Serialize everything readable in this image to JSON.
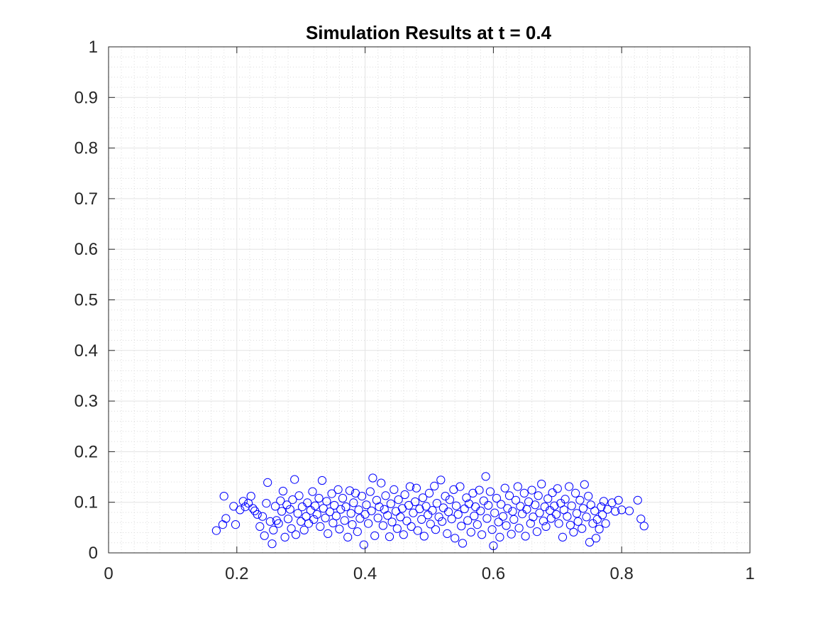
{
  "chart_data": {
    "type": "scatter",
    "title": "Simulation Results at t = 0.4",
    "xlabel": "",
    "ylabel": "",
    "xlim": [
      0,
      1
    ],
    "ylim": [
      0,
      1
    ],
    "x_ticks": [
      "0",
      "0.2",
      "0.4",
      "0.6",
      "0.8",
      "1"
    ],
    "y_ticks": [
      "0",
      "0.1",
      "0.2",
      "0.3",
      "0.4",
      "0.5",
      "0.6",
      "0.7",
      "0.8",
      "0.9",
      "1"
    ],
    "grid": true,
    "minor_grid": true,
    "marker": "open-circle",
    "marker_color": "#0000ff",
    "series": [
      {
        "points": [
          [
            0.168,
            0.044
          ],
          [
            0.178,
            0.056
          ],
          [
            0.18,
            0.112
          ],
          [
            0.183,
            0.068
          ],
          [
            0.195,
            0.092
          ],
          [
            0.198,
            0.056
          ],
          [
            0.205,
            0.085
          ],
          [
            0.21,
            0.102
          ],
          [
            0.213,
            0.091
          ],
          [
            0.218,
            0.098
          ],
          [
            0.222,
            0.112
          ],
          [
            0.225,
            0.088
          ],
          [
            0.228,
            0.083
          ],
          [
            0.232,
            0.076
          ],
          [
            0.236,
            0.052
          ],
          [
            0.24,
            0.072
          ],
          [
            0.243,
            0.034
          ],
          [
            0.246,
            0.098
          ],
          [
            0.248,
            0.139
          ],
          [
            0.252,
            0.062
          ],
          [
            0.255,
            0.018
          ],
          [
            0.257,
            0.045
          ],
          [
            0.26,
            0.092
          ],
          [
            0.262,
            0.064
          ],
          [
            0.265,
            0.058
          ],
          [
            0.268,
            0.103
          ],
          [
            0.27,
            0.082
          ],
          [
            0.272,
            0.122
          ],
          [
            0.275,
            0.031
          ],
          [
            0.278,
            0.095
          ],
          [
            0.28,
            0.067
          ],
          [
            0.283,
            0.086
          ],
          [
            0.285,
            0.048
          ],
          [
            0.287,
            0.105
          ],
          [
            0.29,
            0.145
          ],
          [
            0.292,
            0.036
          ],
          [
            0.295,
            0.078
          ],
          [
            0.297,
            0.113
          ],
          [
            0.3,
            0.062
          ],
          [
            0.302,
            0.091
          ],
          [
            0.305,
            0.045
          ],
          [
            0.308,
            0.072
          ],
          [
            0.31,
            0.099
          ],
          [
            0.312,
            0.058
          ],
          [
            0.315,
            0.084
          ],
          [
            0.318,
            0.121
          ],
          [
            0.32,
            0.066
          ],
          [
            0.322,
            0.093
          ],
          [
            0.325,
            0.076
          ],
          [
            0.328,
            0.108
          ],
          [
            0.33,
            0.052
          ],
          [
            0.333,
            0.143
          ],
          [
            0.335,
            0.088
          ],
          [
            0.338,
            0.069
          ],
          [
            0.34,
            0.102
          ],
          [
            0.342,
            0.038
          ],
          [
            0.345,
            0.081
          ],
          [
            0.348,
            0.117
          ],
          [
            0.35,
            0.059
          ],
          [
            0.352,
            0.094
          ],
          [
            0.355,
            0.073
          ],
          [
            0.358,
            0.125
          ],
          [
            0.36,
            0.047
          ],
          [
            0.362,
            0.086
          ],
          [
            0.365,
            0.108
          ],
          [
            0.368,
            0.064
          ],
          [
            0.37,
            0.091
          ],
          [
            0.373,
            0.031
          ],
          [
            0.376,
            0.123
          ],
          [
            0.378,
            0.078
          ],
          [
            0.38,
            0.056
          ],
          [
            0.382,
            0.099
          ],
          [
            0.385,
            0.118
          ],
          [
            0.388,
            0.042
          ],
          [
            0.39,
            0.085
          ],
          [
            0.392,
            0.068
          ],
          [
            0.395,
            0.112
          ],
          [
            0.398,
            0.016
          ],
          [
            0.4,
            0.076
          ],
          [
            0.402,
            0.095
          ],
          [
            0.405,
            0.058
          ],
          [
            0.408,
            0.121
          ],
          [
            0.41,
            0.083
          ],
          [
            0.412,
            0.148
          ],
          [
            0.415,
            0.034
          ],
          [
            0.418,
            0.104
          ],
          [
            0.42,
            0.069
          ],
          [
            0.422,
            0.091
          ],
          [
            0.425,
            0.138
          ],
          [
            0.428,
            0.054
          ],
          [
            0.43,
            0.086
          ],
          [
            0.432,
            0.113
          ],
          [
            0.435,
            0.074
          ],
          [
            0.438,
            0.032
          ],
          [
            0.44,
            0.097
          ],
          [
            0.442,
            0.061
          ],
          [
            0.445,
            0.125
          ],
          [
            0.448,
            0.082
          ],
          [
            0.45,
            0.048
          ],
          [
            0.452,
            0.105
          ],
          [
            0.455,
            0.071
          ],
          [
            0.458,
            0.088
          ],
          [
            0.46,
            0.036
          ],
          [
            0.462,
            0.115
          ],
          [
            0.465,
            0.063
          ],
          [
            0.468,
            0.094
          ],
          [
            0.47,
            0.131
          ],
          [
            0.472,
            0.052
          ],
          [
            0.475,
            0.079
          ],
          [
            0.478,
            0.101
          ],
          [
            0.48,
            0.128
          ],
          [
            0.482,
            0.044
          ],
          [
            0.485,
            0.087
          ],
          [
            0.488,
            0.066
          ],
          [
            0.49,
            0.109
          ],
          [
            0.492,
            0.033
          ],
          [
            0.495,
            0.092
          ],
          [
            0.498,
            0.075
          ],
          [
            0.5,
            0.118
          ],
          [
            0.502,
            0.057
          ],
          [
            0.505,
            0.084
          ],
          [
            0.508,
            0.132
          ],
          [
            0.51,
            0.046
          ],
          [
            0.512,
            0.098
          ],
          [
            0.515,
            0.071
          ],
          [
            0.518,
            0.144
          ],
          [
            0.52,
            0.062
          ],
          [
            0.522,
            0.089
          ],
          [
            0.525,
            0.112
          ],
          [
            0.528,
            0.038
          ],
          [
            0.53,
            0.081
          ],
          [
            0.532,
            0.105
          ],
          [
            0.535,
            0.067
          ],
          [
            0.538,
            0.125
          ],
          [
            0.54,
            0.029
          ],
          [
            0.542,
            0.093
          ],
          [
            0.545,
            0.076
          ],
          [
            0.548,
            0.131
          ],
          [
            0.55,
            0.053
          ],
          [
            0.552,
            0.019
          ],
          [
            0.555,
            0.087
          ],
          [
            0.558,
            0.109
          ],
          [
            0.56,
            0.064
          ],
          [
            0.562,
            0.097
          ],
          [
            0.565,
            0.041
          ],
          [
            0.568,
            0.118
          ],
          [
            0.57,
            0.073
          ],
          [
            0.572,
            0.091
          ],
          [
            0.575,
            0.056
          ],
          [
            0.578,
            0.124
          ],
          [
            0.58,
            0.083
          ],
          [
            0.582,
            0.036
          ],
          [
            0.585,
            0.103
          ],
          [
            0.588,
            0.151
          ],
          [
            0.59,
            0.068
          ],
          [
            0.592,
            0.094
          ],
          [
            0.595,
            0.121
          ],
          [
            0.598,
            0.046
          ],
          [
            0.6,
            0.014
          ],
          [
            0.602,
            0.079
          ],
          [
            0.605,
            0.108
          ],
          [
            0.608,
            0.061
          ],
          [
            0.61,
            0.031
          ],
          [
            0.612,
            0.096
          ],
          [
            0.615,
            0.072
          ],
          [
            0.618,
            0.128
          ],
          [
            0.62,
            0.054
          ],
          [
            0.622,
            0.088
          ],
          [
            0.625,
            0.113
          ],
          [
            0.628,
            0.037
          ],
          [
            0.63,
            0.082
          ],
          [
            0.632,
            0.066
          ],
          [
            0.635,
            0.104
          ],
          [
            0.638,
            0.131
          ],
          [
            0.64,
            0.049
          ],
          [
            0.642,
            0.092
          ],
          [
            0.645,
            0.077
          ],
          [
            0.648,
            0.118
          ],
          [
            0.65,
            0.033
          ],
          [
            0.652,
            0.086
          ],
          [
            0.655,
            0.101
          ],
          [
            0.658,
            0.058
          ],
          [
            0.66,
            0.124
          ],
          [
            0.662,
            0.071
          ],
          [
            0.665,
            0.095
          ],
          [
            0.668,
            0.042
          ],
          [
            0.67,
            0.113
          ],
          [
            0.672,
            0.079
          ],
          [
            0.675,
            0.136
          ],
          [
            0.678,
            0.063
          ],
          [
            0.68,
            0.091
          ],
          [
            0.682,
            0.052
          ],
          [
            0.685,
            0.107
          ],
          [
            0.688,
            0.084
          ],
          [
            0.69,
            0.068
          ],
          [
            0.692,
            0.119
          ],
          [
            0.695,
            0.093
          ],
          [
            0.698,
            0.076
          ],
          [
            0.7,
            0.127
          ],
          [
            0.702,
            0.058
          ],
          [
            0.705,
            0.098
          ],
          [
            0.708,
            0.031
          ],
          [
            0.71,
            0.085
          ],
          [
            0.712,
            0.106
          ],
          [
            0.715,
            0.072
          ],
          [
            0.718,
            0.131
          ],
          [
            0.72,
            0.055
          ],
          [
            0.722,
            0.093
          ],
          [
            0.725,
            0.041
          ],
          [
            0.728,
            0.118
          ],
          [
            0.73,
            0.078
          ],
          [
            0.732,
            0.062
          ],
          [
            0.735,
            0.104
          ],
          [
            0.738,
            0.048
          ],
          [
            0.74,
            0.088
          ],
          [
            0.742,
            0.135
          ],
          [
            0.745,
            0.071
          ],
          [
            0.748,
            0.112
          ],
          [
            0.75,
            0.021
          ],
          [
            0.752,
            0.095
          ],
          [
            0.755,
            0.058
          ],
          [
            0.758,
            0.083
          ],
          [
            0.76,
            0.029
          ],
          [
            0.762,
            0.066
          ],
          [
            0.765,
            0.047
          ],
          [
            0.768,
            0.091
          ],
          [
            0.77,
            0.075
          ],
          [
            0.772,
            0.102
          ],
          [
            0.775,
            0.058
          ],
          [
            0.778,
            0.086
          ],
          [
            0.785,
            0.099
          ],
          [
            0.79,
            0.082
          ],
          [
            0.795,
            0.104
          ],
          [
            0.8,
            0.085
          ],
          [
            0.812,
            0.083
          ],
          [
            0.825,
            0.104
          ],
          [
            0.83,
            0.067
          ],
          [
            0.835,
            0.053
          ]
        ]
      }
    ]
  }
}
